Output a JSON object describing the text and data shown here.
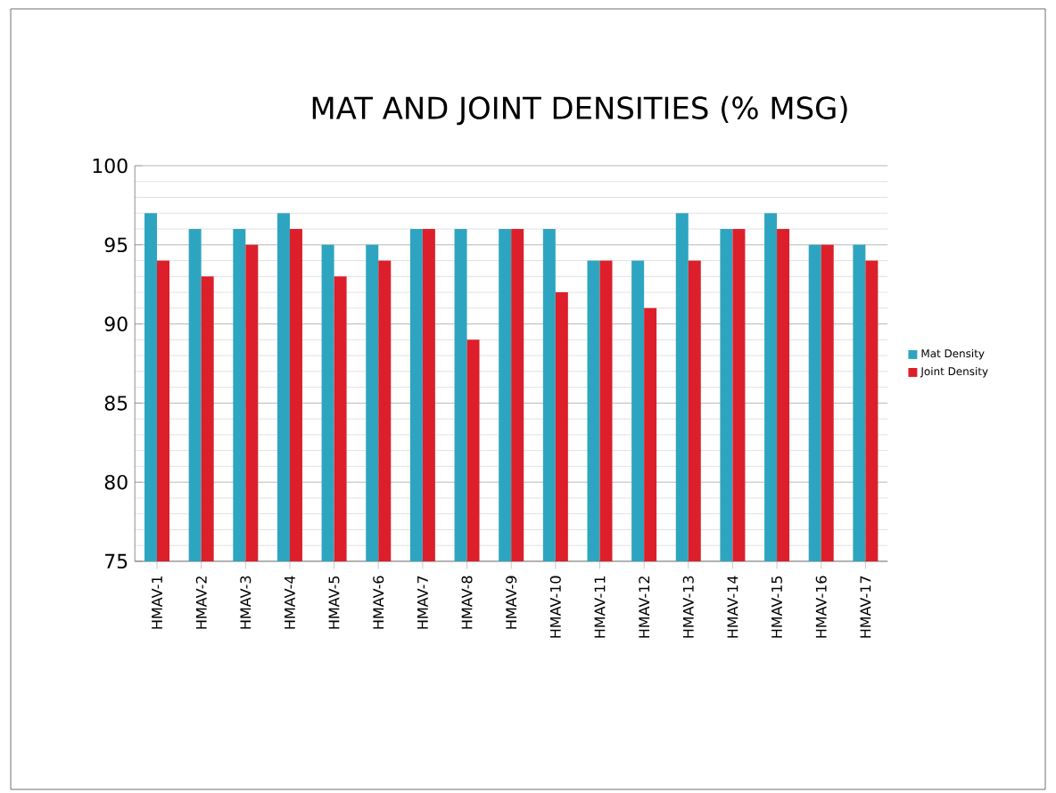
{
  "chart_data": {
    "type": "bar",
    "title": "MAT AND JOINT DENSITIES (% MSG)",
    "categories": [
      "HMAV-1",
      "HMAV-2",
      "HMAV-3",
      "HMAV-4",
      "HMAV-5",
      "HMAV-6",
      "HMAV-7",
      "HMAV-8",
      "HMAV-9",
      "HMAV-10",
      "HMAV-11",
      "HMAV-12",
      "HMAV-13",
      "HMAV-14",
      "HMAV-15",
      "HMAV-16",
      "HMAV-17"
    ],
    "series": [
      {
        "name": "Mat Density",
        "color": "#2ea5c0",
        "values": [
          97,
          96,
          96,
          97,
          95,
          95,
          96,
          96,
          96,
          96,
          94,
          94,
          97,
          96,
          97,
          95,
          95
        ]
      },
      {
        "name": "Joint Density",
        "color": "#dc1f2a",
        "values": [
          94,
          93,
          95,
          96,
          93,
          94,
          96,
          89,
          96,
          92,
          94,
          91,
          94,
          96,
          96,
          95,
          94
        ]
      }
    ],
    "ylim": [
      75,
      100
    ],
    "yticks": [
      75,
      80,
      85,
      90,
      95,
      100
    ],
    "grid": "y",
    "legend": "right"
  }
}
